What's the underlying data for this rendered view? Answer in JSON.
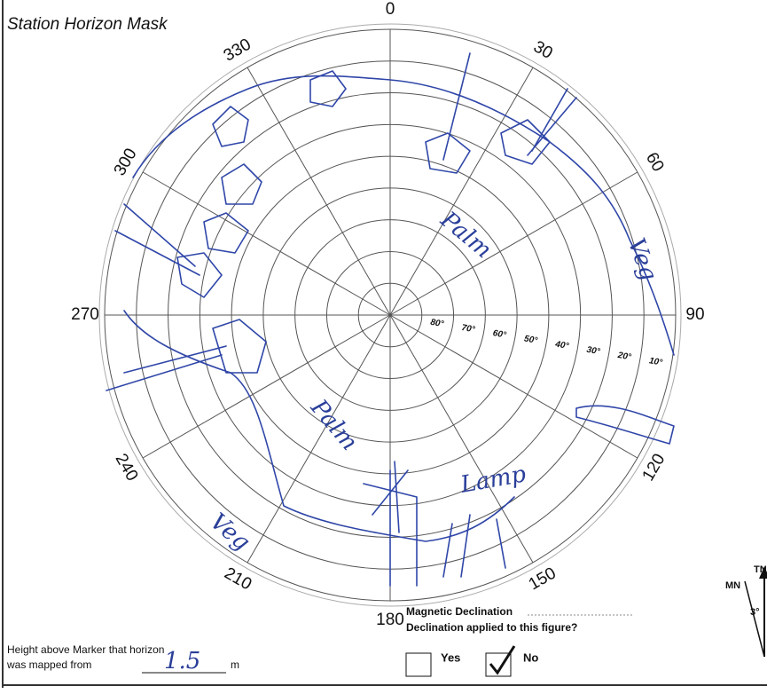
{
  "header": {
    "title": "Station Horizon Mask"
  },
  "azimuth_labels": [
    "0",
    "30",
    "60",
    "90",
    "120",
    "150",
    "180",
    "210",
    "240",
    "270",
    "300",
    "330"
  ],
  "elevation_labels": [
    "80°",
    "70°",
    "60°",
    "50°",
    "40°",
    "30°",
    "20°",
    "10°"
  ],
  "annotations": [
    "Palm",
    "Veg",
    "Palm",
    "Veg",
    "Lamp"
  ],
  "height_note": {
    "line1": "Height above Marker that horizon",
    "line2": "was mapped from",
    "value": "1.5",
    "unit": "m"
  },
  "declination": {
    "title": "Magnetic Declination",
    "question": "Declination applied to this figure?",
    "yes": "Yes",
    "no": "No"
  },
  "compass": {
    "tn": "TN",
    "mn": "MN",
    "angle": "3°"
  }
}
